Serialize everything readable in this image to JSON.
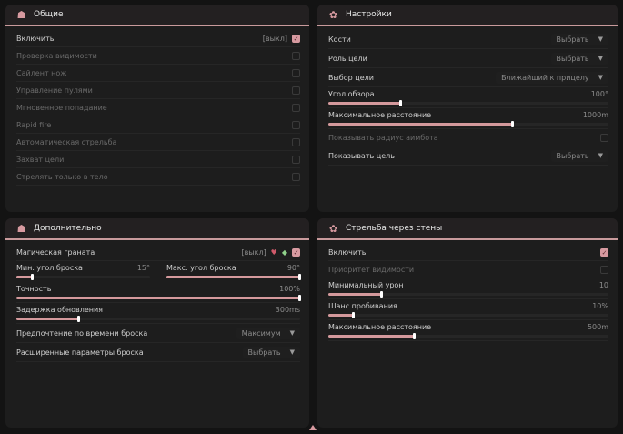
{
  "accent": "#d79aa0",
  "panels": [
    {
      "title": "Общие",
      "icon": "user-group-icon",
      "rows": [
        {
          "type": "check",
          "label": "Включить",
          "keybind": "[выкл]",
          "checked": true
        },
        {
          "type": "check",
          "label": "Проверка видимости",
          "checked": false,
          "dim": true
        },
        {
          "type": "check",
          "label": "Сайлент нож",
          "checked": false,
          "dim": true
        },
        {
          "type": "check",
          "label": "Управление пулями",
          "checked": false,
          "dim": true
        },
        {
          "type": "check",
          "label": "Мгновенное попадание",
          "checked": false,
          "dim": true
        },
        {
          "type": "check",
          "label": "Rapid fire",
          "checked": false,
          "dim": true
        },
        {
          "type": "check",
          "label": "Автоматическая стрельба",
          "checked": false,
          "dim": true
        },
        {
          "type": "check",
          "label": "Захват цели",
          "checked": false,
          "dim": true
        },
        {
          "type": "check",
          "label": "Стрелять только в тело",
          "checked": false,
          "dim": true
        }
      ]
    },
    {
      "title": "Настройки",
      "icon": "gear-icon",
      "rows": [
        {
          "type": "select",
          "label": "Кости",
          "value": "Выбрать"
        },
        {
          "type": "select",
          "label": "Роль цели",
          "value": "Выбрать"
        },
        {
          "type": "select",
          "label": "Выбор цели",
          "value": "Ближайший к прицелу"
        },
        {
          "type": "slider",
          "label": "Угол обзора",
          "value": "100°",
          "fraction": 0.26
        },
        {
          "type": "slider",
          "label": "Максимальное расстояние",
          "value": "1000m",
          "fraction": 0.66
        },
        {
          "type": "check",
          "label": "Показывать радиус аимбота",
          "checked": false,
          "dim": true
        },
        {
          "type": "select",
          "label": "Показывать цель",
          "value": "Выбрать"
        }
      ]
    },
    {
      "title": "Дополнительно",
      "icon": "user-group-icon",
      "rows": [
        {
          "type": "check",
          "label": "Магическая граната",
          "keybind": "[выкл]",
          "checked": true,
          "extra_icons": [
            "heart-icon",
            "gem-icon"
          ]
        },
        {
          "type": "halfsliders",
          "items": [
            {
              "label": "Мин. угол броска",
              "value": "15°",
              "fraction": 0.12
            },
            {
              "label": "Макс. угол броска",
              "value": "90°",
              "fraction": 1.0
            }
          ]
        },
        {
          "type": "slider",
          "label": "Точность",
          "value": "100%",
          "fraction": 1.0
        },
        {
          "type": "slider",
          "label": "Задержка обновления",
          "value": "300ms",
          "fraction": 0.22
        },
        {
          "type": "select",
          "label": "Предпочтение по времени броска",
          "value": "Максимум"
        },
        {
          "type": "select",
          "label": "Расширенные параметры броска",
          "value": "Выбрать"
        }
      ]
    },
    {
      "title": "Стрельба через стены",
      "icon": "gear-icon",
      "rows": [
        {
          "type": "check",
          "label": "Включить",
          "checked": true
        },
        {
          "type": "check",
          "label": "Приоритет видимости",
          "checked": false,
          "dim": true
        },
        {
          "type": "slider",
          "label": "Минимальный урон",
          "value": "10",
          "fraction": 0.19
        },
        {
          "type": "slider",
          "label": "Шанс пробивания",
          "value": "10%",
          "fraction": 0.09
        },
        {
          "type": "slider",
          "label": "Максимальное расстояние",
          "value": "500m",
          "fraction": 0.31
        }
      ]
    }
  ]
}
